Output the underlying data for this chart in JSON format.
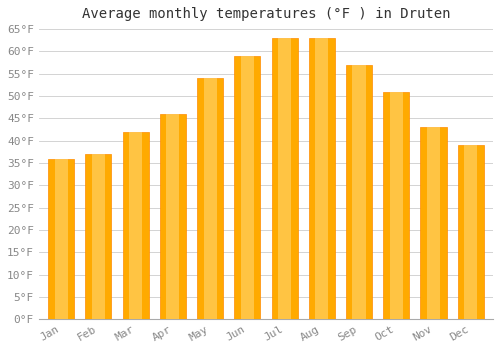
{
  "title": "Average monthly temperatures (°F ) in Druten",
  "months": [
    "Jan",
    "Feb",
    "Mar",
    "Apr",
    "May",
    "Jun",
    "Jul",
    "Aug",
    "Sep",
    "Oct",
    "Nov",
    "Dec"
  ],
  "values": [
    36,
    37,
    42,
    46,
    54,
    59,
    63,
    63,
    57,
    51,
    43,
    39
  ],
  "bar_color_main": "#FFAA00",
  "bar_color_light": "#FFD060",
  "bar_edge_color": "#FF8C00",
  "background_color": "#FFFFFF",
  "grid_color": "#CCCCCC",
  "ylim": [
    0,
    65
  ],
  "yticks": [
    0,
    5,
    10,
    15,
    20,
    25,
    30,
    35,
    40,
    45,
    50,
    55,
    60,
    65
  ],
  "title_fontsize": 10,
  "tick_fontsize": 8,
  "tick_color": "#888888",
  "title_color": "#333333",
  "bar_width": 0.7
}
